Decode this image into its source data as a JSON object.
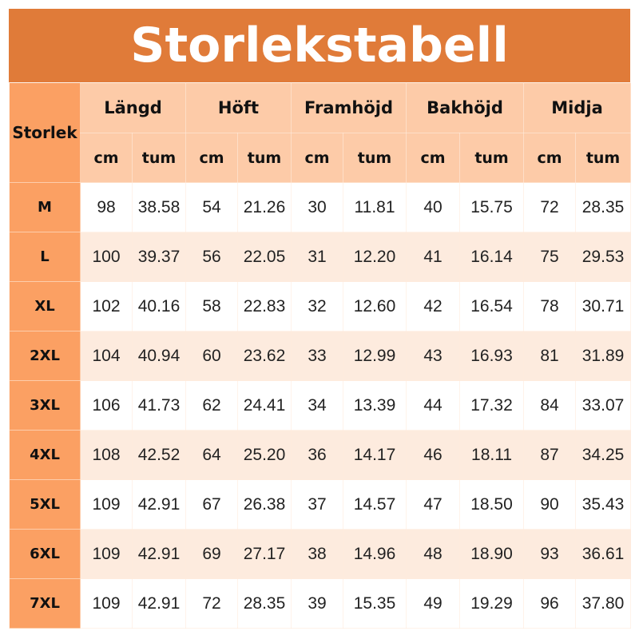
{
  "title": "Storlekstabell",
  "size_header": "Storlek",
  "groups": [
    "Längd",
    "Höft",
    "Framhöjd",
    "Bakhöjd",
    "Midja"
  ],
  "units": [
    "cm",
    "tum"
  ],
  "colors": {
    "title_bg": "#E07B39",
    "size_column": "#FBA063",
    "header_bg": "#FDCBA8",
    "stripe": "#FDEBDE"
  },
  "rows": [
    {
      "size": "M",
      "values": [
        "98",
        "38.58",
        "54",
        "21.26",
        "30",
        "11.81",
        "40",
        "15.75",
        "72",
        "28.35"
      ]
    },
    {
      "size": "L",
      "values": [
        "100",
        "39.37",
        "56",
        "22.05",
        "31",
        "12.20",
        "41",
        "16.14",
        "75",
        "29.53"
      ]
    },
    {
      "size": "XL",
      "values": [
        "102",
        "40.16",
        "58",
        "22.83",
        "32",
        "12.60",
        "42",
        "16.54",
        "78",
        "30.71"
      ]
    },
    {
      "size": "2XL",
      "values": [
        "104",
        "40.94",
        "60",
        "23.62",
        "33",
        "12.99",
        "43",
        "16.93",
        "81",
        "31.89"
      ]
    },
    {
      "size": "3XL",
      "values": [
        "106",
        "41.73",
        "62",
        "24.41",
        "34",
        "13.39",
        "44",
        "17.32",
        "84",
        "33.07"
      ]
    },
    {
      "size": "4XL",
      "values": [
        "108",
        "42.52",
        "64",
        "25.20",
        "36",
        "14.17",
        "46",
        "18.11",
        "87",
        "34.25"
      ]
    },
    {
      "size": "5XL",
      "values": [
        "109",
        "42.91",
        "67",
        "26.38",
        "37",
        "14.57",
        "47",
        "18.50",
        "90",
        "35.43"
      ]
    },
    {
      "size": "6XL",
      "values": [
        "109",
        "42.91",
        "69",
        "27.17",
        "38",
        "14.96",
        "48",
        "18.90",
        "93",
        "36.61"
      ]
    },
    {
      "size": "7XL",
      "values": [
        "109",
        "42.91",
        "72",
        "28.35",
        "39",
        "15.35",
        "49",
        "19.29",
        "96",
        "37.80"
      ]
    }
  ]
}
